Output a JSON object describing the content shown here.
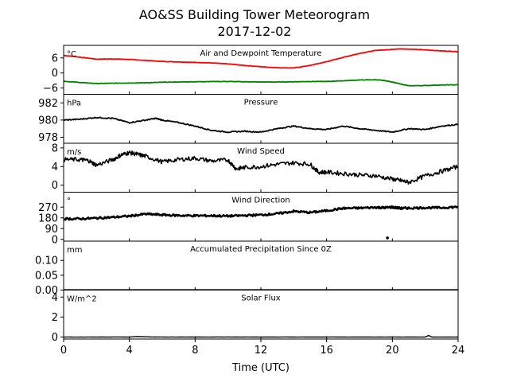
{
  "figure": {
    "title_line1": "AO&SS Building Tower Meteorogram",
    "title_line2": "2017-12-02",
    "xlabel": "Time (UTC)"
  },
  "chart_data": {
    "type": "line",
    "x_range": [
      0,
      24
    ],
    "x_ticks": [
      0,
      4,
      8,
      12,
      16,
      20,
      24
    ],
    "x_tick_labels": [
      "0",
      "4",
      "8",
      "12",
      "16",
      "20",
      "24"
    ],
    "grid": false,
    "panels": [
      {
        "id": "temp",
        "title": "Air and Dewpoint Temperature",
        "unit": "°C",
        "ylim": [
          -8.5,
          11
        ],
        "y_ticks": [
          -6,
          0,
          6
        ],
        "y_tick_labels": [
          "−6",
          "0",
          "6"
        ],
        "series": [
          {
            "color": "#ff0000",
            "x": [
              0,
              1,
              2,
              3,
              4,
              5,
              6,
              7,
              8,
              9,
              10,
              11,
              12,
              13,
              14,
              15,
              16,
              17,
              18,
              19,
              19.5,
              20,
              20.5,
              21,
              22,
              23,
              24
            ],
            "values": [
              7.0,
              6.3,
              5.5,
              5.6,
              5.4,
              5.0,
              4.6,
              4.4,
              4.2,
              4.0,
              3.6,
              3.0,
              2.5,
              2.1,
              2.0,
              3.0,
              4.5,
              6.2,
              7.8,
              9.0,
              9.2,
              9.4,
              9.6,
              9.5,
              9.2,
              8.8,
              8.5
            ]
          },
          {
            "color": "#008000",
            "x": [
              0,
              1,
              2,
              3,
              4,
              5,
              6,
              7,
              8,
              9,
              10,
              11,
              12,
              13,
              14,
              15,
              16,
              17,
              18,
              19,
              19.5,
              20,
              20.5,
              21,
              22,
              23,
              24
            ],
            "values": [
              -3.3,
              -3.8,
              -4.2,
              -4.1,
              -4.0,
              -3.9,
              -3.7,
              -3.6,
              -3.5,
              -3.4,
              -3.4,
              -3.5,
              -3.6,
              -3.6,
              -3.5,
              -3.4,
              -3.4,
              -3.1,
              -2.8,
              -2.7,
              -3.0,
              -3.6,
              -4.4,
              -5.1,
              -5.0,
              -4.8,
              -4.7
            ]
          }
        ]
      },
      {
        "id": "pressure",
        "title": "Pressure",
        "unit": "hPa",
        "ylim": [
          977.3,
          983.0
        ],
        "y_ticks": [
          978,
          980,
          982
        ],
        "y_tick_labels": [
          "978",
          "980",
          "982"
        ],
        "series": [
          {
            "color": "#000000",
            "x": [
              0,
              1,
              2,
              3,
              4,
              5,
              5.6,
              6,
              7,
              8,
              9,
              10,
              11,
              12,
              13,
              14,
              15,
              16,
              17,
              18,
              19,
              20,
              21,
              22,
              23,
              24
            ],
            "values": [
              980.0,
              980.1,
              980.3,
              980.2,
              979.7,
              980.0,
              980.2,
              980.0,
              979.7,
              979.3,
              978.8,
              978.6,
              978.7,
              978.6,
              979.0,
              979.3,
              979.0,
              978.9,
              979.3,
              979.0,
              978.8,
              978.6,
              979.0,
              978.9,
              979.3,
              979.5
            ]
          }
        ]
      },
      {
        "id": "wind_speed",
        "title": "Wind Speed",
        "unit": "m/s",
        "ylim": [
          -1.5,
          9.0
        ],
        "y_ticks": [
          0,
          4,
          8
        ],
        "y_tick_labels": [
          "0",
          "4",
          "8"
        ],
        "series": [
          {
            "color": "#000000",
            "x": [
              0,
              1,
              1.5,
              2,
              3,
              3.5,
              4,
              4.5,
              5,
              6,
              7,
              8,
              9,
              10,
              10.5,
              11,
              12,
              13,
              14,
              15,
              15.5,
              16,
              17,
              18,
              19,
              20,
              20.5,
              21,
              22,
              23,
              24
            ],
            "values": [
              5.5,
              5.5,
              5.3,
              4.3,
              5.5,
              6.5,
              7.0,
              6.6,
              6.2,
              5.0,
              5.5,
              5.8,
              5.2,
              5.4,
              3.5,
              3.8,
              4.0,
              4.5,
              4.8,
              4.5,
              2.8,
              2.8,
              2.5,
              2.2,
              2.0,
              1.3,
              1.0,
              0.6,
              2.0,
              3.0,
              4.0
            ]
          }
        ]
      },
      {
        "id": "wind_dir",
        "title": "Wind Direction",
        "unit": "°",
        "ylim": [
          -15,
          395
        ],
        "y_ticks": [
          0,
          90,
          180,
          270
        ],
        "y_tick_labels": [
          "0",
          "90",
          "180",
          "270"
        ],
        "series": [
          {
            "color": "#000000",
            "x": [
              0,
              1,
              2,
              3,
              4,
              5,
              6,
              7,
              8,
              9,
              10,
              11,
              12,
              13,
              14,
              15,
              16,
              17,
              18,
              19,
              19.5,
              20,
              20.5,
              21,
              22,
              23,
              24
            ],
            "values": [
              172,
              172,
              178,
              185,
              195,
              212,
              205,
              200,
              198,
              198,
              195,
              200,
              205,
              215,
              235,
              225,
              240,
              260,
              262,
              268,
              265,
              270,
              260,
              262,
              265,
              265,
              272
            ]
          }
        ],
        "outliers": [
          {
            "x": 19.7,
            "y": 12
          }
        ]
      },
      {
        "id": "precip",
        "title": "Accumulated Precipitation Since 0Z",
        "unit": "mm",
        "ylim": [
          0.0,
          0.165
        ],
        "y_ticks": [
          0.0,
          0.05,
          0.1
        ],
        "y_tick_labels": [
          "0.00",
          "0.05",
          "0.10"
        ],
        "series": [
          {
            "color": "#000000",
            "x": [
              0,
              24
            ],
            "values": [
              0.0,
              0.0
            ]
          }
        ]
      },
      {
        "id": "solar",
        "title": "Solar Flux",
        "unit": "W/m^2",
        "ylim": [
          -0.2,
          4.7
        ],
        "y_ticks": [
          0,
          2,
          4
        ],
        "y_tick_labels": [
          "0",
          "2",
          "4"
        ],
        "series": [
          {
            "color": "#000000",
            "x": [
              0,
              2,
              4,
              4.5,
              5,
              6,
              8,
              10,
              12,
              16,
              20,
              22,
              22.2,
              22.4,
              24
            ],
            "values": [
              0.0,
              0.0,
              0.0,
              0.05,
              0.02,
              0.0,
              0.0,
              0.0,
              0.0,
              0.0,
              0.0,
              0.0,
              0.15,
              0.0,
              0.0
            ]
          }
        ]
      }
    ]
  }
}
